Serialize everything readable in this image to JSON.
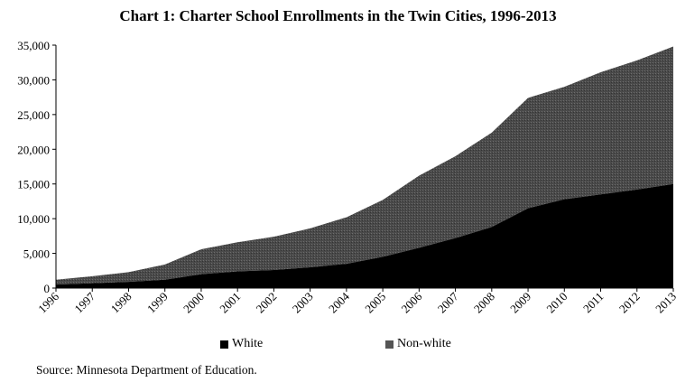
{
  "chart_data": {
    "type": "area",
    "stacked": true,
    "title": "Chart 1: Charter School Enrollments in the Twin Cities, 1996-2013",
    "x": [
      "1996",
      "1997",
      "1998",
      "1999",
      "2000",
      "2001",
      "2002",
      "2003",
      "2004",
      "2005",
      "2006",
      "2007",
      "2008",
      "2009",
      "2010",
      "2011",
      "2012",
      "2013"
    ],
    "series": [
      {
        "name": "White",
        "color": "#000000",
        "values": [
          500,
          700,
          900,
          1200,
          2000,
          2400,
          2600,
          3000,
          3500,
          4500,
          5800,
          7200,
          8800,
          11500,
          12800,
          13500,
          14200,
          15000
        ]
      },
      {
        "name": "Non-white",
        "color": "#4a4a4a",
        "values": [
          700,
          1000,
          1400,
          2200,
          3600,
          4200,
          4800,
          5600,
          6700,
          8200,
          10400,
          11800,
          13600,
          15900,
          16200,
          17600,
          18600,
          19800
        ]
      }
    ],
    "y_ticks": [
      "0",
      "5,000",
      "10,000",
      "15,000",
      "20,000",
      "25,000",
      "30,000",
      "35,000"
    ],
    "ylim": [
      0,
      35000
    ],
    "grid": false,
    "legend_position": "bottom"
  },
  "source": "Source: Minnesota Department of Education."
}
